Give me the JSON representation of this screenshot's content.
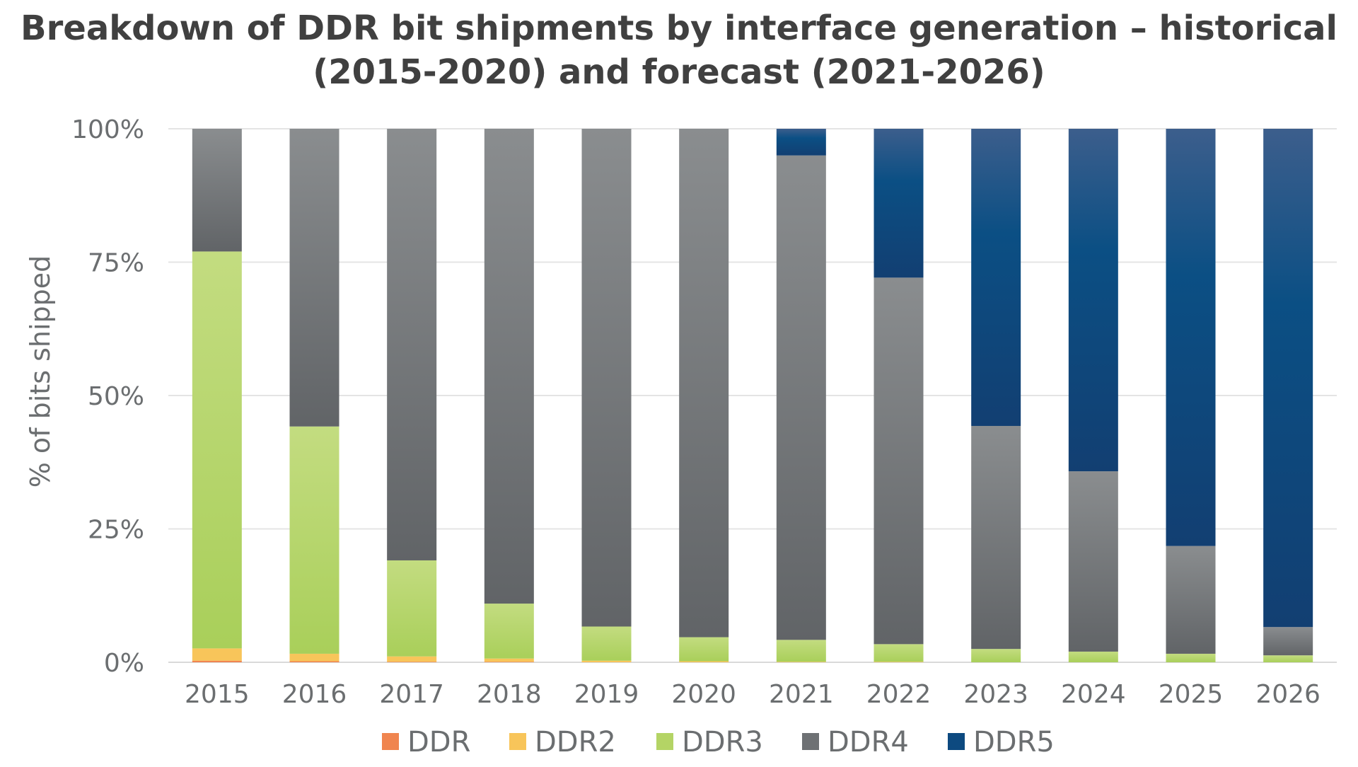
{
  "chart_data": {
    "type": "bar",
    "stacked": true,
    "title_lines": [
      "Breakdown of DDR bit shipments by interface generation – historical",
      "(2015-2020) and forecast (2021-2026)"
    ],
    "ylabel": "% of bits shipped",
    "xlabel": "",
    "ylim": [
      0,
      100
    ],
    "yticks": [
      0,
      25,
      50,
      75,
      100
    ],
    "ytick_labels": [
      "0%",
      "25%",
      "50%",
      "75%",
      "100%"
    ],
    "grid": true,
    "legend_position": "bottom",
    "categories": [
      "2015",
      "2016",
      "2017",
      "2018",
      "2019",
      "2020",
      "2021",
      "2022",
      "2023",
      "2024",
      "2025",
      "2026"
    ],
    "series": [
      {
        "name": "DDR",
        "color": "#f0854f",
        "values": [
          0.3,
          0.2,
          0.1,
          0.1,
          0,
          0,
          0,
          0,
          0,
          0,
          0,
          0
        ]
      },
      {
        "name": "DDR2",
        "color": "#f8c55a",
        "values": [
          2.3,
          1.4,
          1.0,
          0.6,
          0.3,
          0.2,
          0.1,
          0.1,
          0,
          0,
          0,
          0
        ]
      },
      {
        "name": "DDR3",
        "color": "#b4d465",
        "values": [
          74.4,
          42.6,
          18.0,
          10.3,
          6.4,
          4.5,
          4.1,
          3.3,
          2.5,
          2.0,
          1.6,
          1.3
        ]
      },
      {
        "name": "DDR4",
        "color": "#6e7174",
        "values": [
          23.0,
          55.8,
          80.9,
          89.0,
          93.3,
          95.3,
          90.8,
          68.7,
          41.8,
          33.8,
          20.2,
          5.3
        ]
      },
      {
        "name": "DDR5",
        "color": "#0d4a80",
        "values": [
          0,
          0,
          0,
          0,
          0,
          0,
          5.0,
          27.9,
          55.7,
          64.2,
          78.2,
          93.4
        ]
      }
    ]
  }
}
